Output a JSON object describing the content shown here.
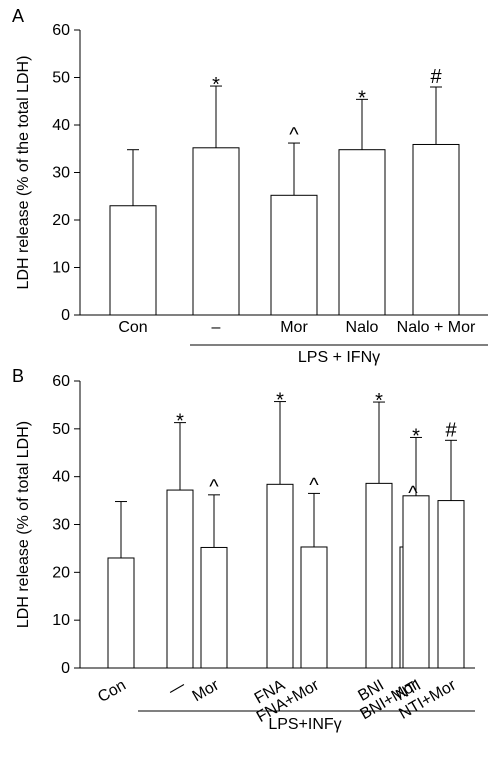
{
  "chart_data": [
    {
      "type": "bar",
      "panel": "A",
      "ylabel": "LDH release (% of the total LDH)",
      "ylim": [
        0,
        60
      ],
      "yticks": [
        0,
        10,
        20,
        30,
        40,
        50,
        60
      ],
      "categories": [
        "Con",
        "–",
        "Mor",
        "Nalo",
        "Nalo + Mor"
      ],
      "values": [
        23,
        35.2,
        25.2,
        34.8,
        35.9
      ],
      "errors": [
        11.8,
        13,
        11,
        10.6,
        12.1
      ],
      "markers": [
        "",
        "*",
        "^",
        "*",
        "#"
      ],
      "group_label": "LPS + IFNγ",
      "group_span": [
        1,
        4
      ]
    },
    {
      "type": "bar",
      "panel": "B",
      "ylabel": "LDH release (% of total LDH)",
      "ylim": [
        0,
        60
      ],
      "yticks": [
        0,
        10,
        20,
        30,
        40,
        50,
        60
      ],
      "categories": [
        "Con",
        "—",
        "Mor",
        "FNA",
        "FNA+Mor",
        "BNI",
        "BNI+Mor",
        "NTI",
        "NTI+Mor"
      ],
      "values": [
        23,
        37.2,
        25.2,
        38.4,
        25.3,
        38.6,
        25.3,
        36,
        35
      ],
      "errors": [
        11.8,
        14.1,
        11,
        17.3,
        11.2,
        17,
        9.5,
        12.2,
        12.6
      ],
      "markers": [
        "",
        "*",
        "^",
        "*",
        "^",
        "*",
        "^",
        "*",
        "#"
      ],
      "group_label": "LPS+INFγ",
      "group_span": [
        1,
        8
      ]
    }
  ]
}
